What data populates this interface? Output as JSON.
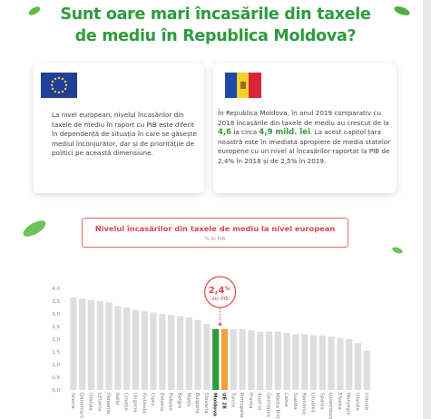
{
  "header": {
    "title_line1": "Sunt oare mari încasările din taxele",
    "title_line2": "de mediu în Republica Moldova?"
  },
  "cards": [
    {
      "text": "La nivel european, nivelul încasărilor din taxele de mediu în raport cu PIB este diferit în dependență de situația în care se găsește mediul înconjurător, dar și de prioritățile de politici pe această dimensiune."
    },
    {
      "parts": [
        "În Republica Moldova, în anul 2019 comparativ cu 2018 încasările din taxele de mediu au crescut de la ",
        "4,6",
        " la circa ",
        "4,9 mild. lei",
        ". La acest capitol țara noastră este în imediata apropiere de media statelor europene cu un nivel al încasărilor raportat la PIB de 2,4% în 2018 și de 2,5% în 2019."
      ]
    }
  ],
  "chart_data": {
    "type": "bar",
    "title": "Nivelul încasărilor din taxele de mediu la nivel european",
    "subtitle": "% în PIB",
    "categories": [
      "Grecia",
      "Danemarca",
      "Olanda",
      "Letonia",
      "Slovenia",
      "Italia",
      "Croația",
      "Ungaria",
      "Finlanda",
      "Cipru",
      "Estonia",
      "Polonia",
      "Belgia",
      "Malta",
      "Bulgaria",
      "Slovacia",
      "Moldova",
      "UE 28",
      "Turcia",
      "Portugalia",
      "Franța",
      "Austria",
      "Germania",
      "Marea Britanie",
      "Cehia",
      "Suedia",
      "România",
      "Lituania",
      "Spania",
      "Luxemburg",
      "Elveția",
      "Norvegia",
      "Islanda",
      "Irlanda"
    ],
    "values": [
      3.65,
      3.6,
      3.55,
      3.5,
      3.45,
      3.3,
      3.25,
      3.15,
      3.1,
      3.05,
      3.0,
      2.95,
      2.9,
      2.85,
      2.75,
      2.6,
      2.4,
      2.4,
      2.4,
      2.4,
      2.35,
      2.3,
      2.3,
      2.3,
      2.25,
      2.2,
      2.2,
      2.15,
      2.15,
      2.1,
      2.05,
      2.0,
      1.85,
      1.55
    ],
    "colors": [
      "#dedede",
      "#dedede",
      "#dedede",
      "#dedede",
      "#dedede",
      "#dedede",
      "#dedede",
      "#dedede",
      "#dedede",
      "#dedede",
      "#dedede",
      "#dedede",
      "#dedede",
      "#dedede",
      "#dedede",
      "#dedede",
      "#2e9b3e",
      "#f2a03d",
      "#dedede",
      "#dedede",
      "#dedede",
      "#dedede",
      "#dedede",
      "#dedede",
      "#dedede",
      "#dedede",
      "#dedede",
      "#dedede",
      "#dedede",
      "#dedede",
      "#dedede",
      "#dedede",
      "#dedede",
      "#dedede"
    ],
    "ylim": [
      0,
      4
    ],
    "yticks": [
      {
        "value": 0,
        "label": "0,0"
      },
      {
        "value": 0.5,
        "label": "0,5"
      },
      {
        "value": 1,
        "label": "1,0"
      },
      {
        "value": 1.5,
        "label": "1,5"
      },
      {
        "value": 2,
        "label": "2,0"
      },
      {
        "value": 2.5,
        "label": "2,5"
      },
      {
        "value": 3,
        "label": "3,0"
      },
      {
        "value": 3.5,
        "label": "3,5"
      },
      {
        "value": 4,
        "label": "4,0"
      }
    ],
    "grid": false,
    "callout": {
      "value": 2.4,
      "label": "2,4",
      "unit": "%",
      "note": "din PIB"
    }
  }
}
